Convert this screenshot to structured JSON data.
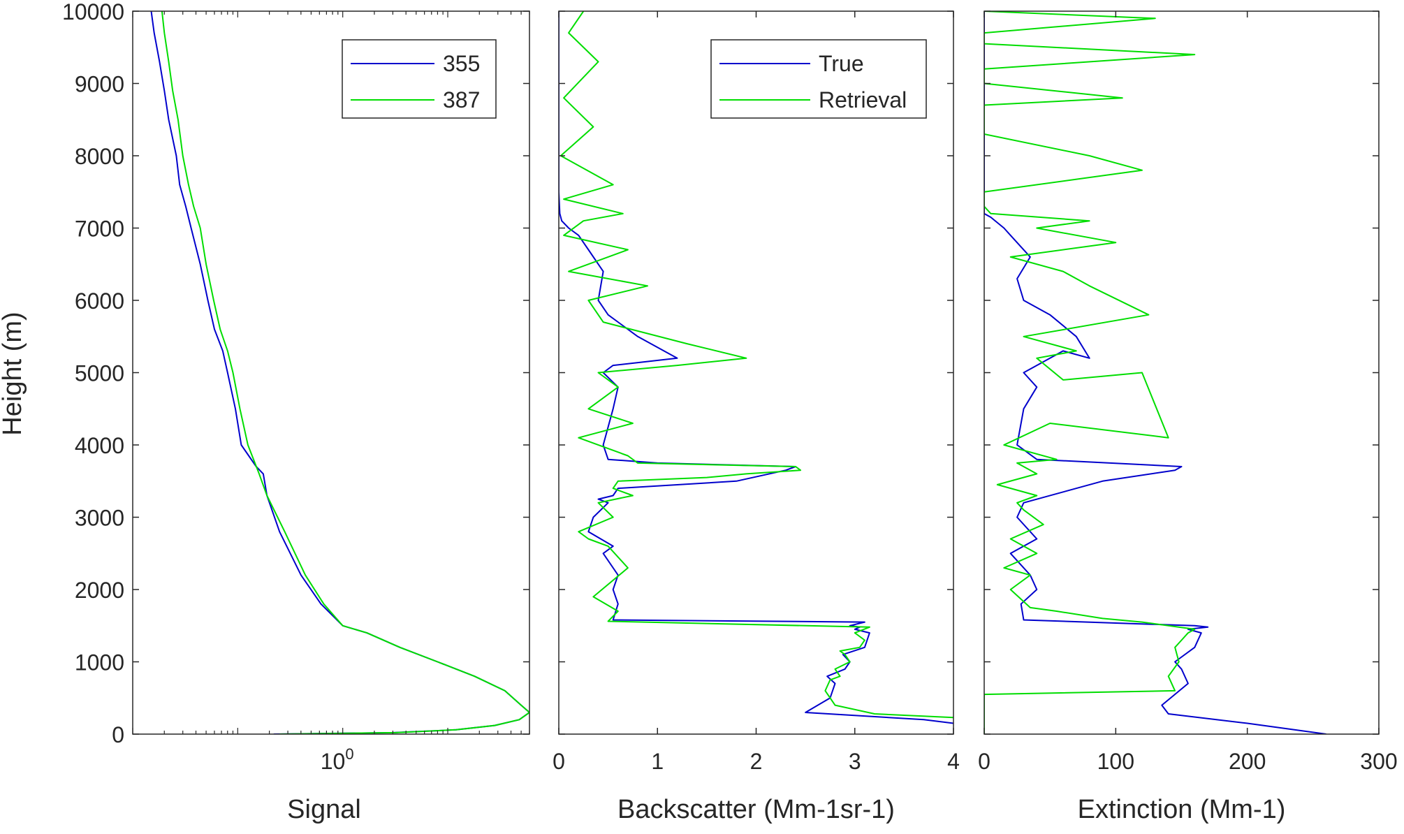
{
  "figure": {
    "ylabel": "Height (m)"
  },
  "chart_data": [
    {
      "id": "signal",
      "type": "line",
      "xscale": "log",
      "xlabel": "Signal",
      "xlim": [
        0.01,
        60
      ],
      "ylim": [
        0,
        10000
      ],
      "xticks": [
        1
      ],
      "xticklabels": [
        "10^0"
      ],
      "yticks": [
        0,
        1000,
        2000,
        3000,
        4000,
        5000,
        6000,
        7000,
        8000,
        9000,
        10000
      ],
      "yticklabels": [
        "0",
        "1000",
        "2000",
        "3000",
        "4000",
        "5000",
        "6000",
        "7000",
        "8000",
        "9000",
        "10000"
      ],
      "grid": false,
      "legend": {
        "position": "top-right",
        "entries": [
          "355",
          "387"
        ]
      },
      "series": [
        {
          "name": "355",
          "color": "#0000cc",
          "x": [
            0.22,
            3.0,
            12.0,
            28.0,
            48.0,
            60.0,
            50.0,
            35.0,
            18.0,
            8.0,
            3.5,
            1.7,
            1.0,
            0.62,
            0.4,
            0.25,
            0.19,
            0.175,
            0.15,
            0.108,
            0.095,
            0.08,
            0.072,
            0.06,
            0.052,
            0.044,
            0.036,
            0.032,
            0.028,
            0.026,
            0.022,
            0.02,
            0.018,
            0.016,
            0.015
          ],
          "y": [
            0,
            20,
            60,
            120,
            200,
            300,
            400,
            600,
            800,
            1000,
            1200,
            1400,
            1500,
            1800,
            2200,
            2800,
            3300,
            3600,
            3700,
            4000,
            4500,
            5000,
            5300,
            5600,
            6000,
            6500,
            7000,
            7300,
            7600,
            8000,
            8500,
            8900,
            9300,
            9700,
            10000
          ]
        },
        {
          "name": "387",
          "color": "#00dd00",
          "x": [
            0.25,
            3.2,
            12.0,
            28.0,
            48.0,
            60.0,
            50.0,
            35.0,
            18.0,
            8.0,
            3.5,
            1.7,
            1.0,
            0.66,
            0.44,
            0.28,
            0.19,
            0.16,
            0.125,
            0.105,
            0.09,
            0.08,
            0.068,
            0.059,
            0.05,
            0.044,
            0.038,
            0.034,
            0.03,
            0.027,
            0.024,
            0.022,
            0.02,
            0.019
          ],
          "y": [
            0,
            20,
            60,
            120,
            200,
            300,
            400,
            600,
            800,
            1000,
            1200,
            1400,
            1500,
            1800,
            2200,
            2800,
            3300,
            3600,
            4000,
            4500,
            5000,
            5300,
            5600,
            6000,
            6500,
            7000,
            7300,
            7600,
            8000,
            8500,
            8900,
            9300,
            9700,
            10000
          ]
        }
      ]
    },
    {
      "id": "backscatter",
      "type": "line",
      "xscale": "linear",
      "xlabel": "Backscatter (Mm-1sr-1)",
      "xlim": [
        0,
        4
      ],
      "ylim": [
        0,
        10000
      ],
      "xticks": [
        0,
        1,
        2,
        3,
        4
      ],
      "xticklabels": [
        "0",
        "1",
        "2",
        "3",
        "4"
      ],
      "grid": false,
      "legend": {
        "position": "top-right",
        "entries": [
          "True",
          "Retrieval"
        ]
      },
      "series": [
        {
          "name": "True",
          "color": "#0000cc",
          "x": [
            4.0,
            3.7,
            2.5,
            2.75,
            2.8,
            2.72,
            2.9,
            2.95,
            2.88,
            3.1,
            3.15,
            3.0,
            3.05,
            2.95,
            3.1,
            0.55,
            0.6,
            0.55,
            0.6,
            0.45,
            0.55,
            0.3,
            0.35,
            0.5,
            0.4,
            0.55,
            0.6,
            1.8,
            2.3,
            2.4,
            1.0,
            0.5,
            0.45,
            0.55,
            0.6,
            0.45,
            0.55,
            1.2,
            0.8,
            0.5,
            0.4,
            0.45,
            0.3,
            0.2,
            0.1,
            0.03,
            0.01,
            0.0,
            0.0,
            0.0,
            0.0
          ],
          "y": [
            150,
            200,
            300,
            500,
            700,
            800,
            900,
            1000,
            1100,
            1200,
            1400,
            1450,
            1480,
            1500,
            1550,
            1580,
            1800,
            2000,
            2200,
            2500,
            2600,
            2800,
            3000,
            3200,
            3250,
            3300,
            3400,
            3500,
            3650,
            3700,
            3750,
            3800,
            4000,
            4500,
            4800,
            5000,
            5100,
            5200,
            5500,
            5800,
            6000,
            6400,
            6700,
            6900,
            7000,
            7100,
            7200,
            7500,
            8000,
            9000,
            10000
          ]
        },
        {
          "name": "Retrieval",
          "color": "#00dd00",
          "x": [
            4.0,
            3.2,
            2.8,
            2.7,
            2.75,
            2.85,
            2.8,
            2.95,
            2.9,
            2.85,
            3.05,
            3.1,
            3.0,
            3.15,
            0.5,
            0.6,
            0.35,
            0.7,
            0.5,
            0.3,
            0.2,
            0.55,
            0.4,
            0.75,
            0.55,
            0.6,
            1.5,
            1.9,
            2.45,
            2.4,
            0.8,
            0.7,
            0.2,
            0.75,
            0.3,
            0.6,
            0.4,
            1.2,
            1.9,
            1.3,
            0.45,
            0.3,
            0.9,
            0.1,
            0.7,
            0.05,
            0.25,
            0.65,
            0.05,
            0.55,
            0.02,
            0.35,
            0.05,
            0.4,
            0.1,
            0.25
          ],
          "y": [
            230,
            280,
            400,
            600,
            750,
            800,
            900,
            1000,
            1100,
            1150,
            1200,
            1300,
            1400,
            1480,
            1560,
            1700,
            1900,
            2300,
            2600,
            2700,
            2800,
            3000,
            3200,
            3300,
            3400,
            3500,
            3550,
            3600,
            3650,
            3700,
            3750,
            3850,
            4100,
            4300,
            4500,
            4800,
            5000,
            5100,
            5200,
            5400,
            5700,
            6000,
            6200,
            6400,
            6700,
            6900,
            7100,
            7200,
            7400,
            7600,
            8000,
            8400,
            8800,
            9300,
            9700,
            10000
          ]
        }
      ]
    },
    {
      "id": "extinction",
      "type": "line",
      "xscale": "linear",
      "xlabel": "Extinction (Mm-1)",
      "xlim": [
        0,
        300
      ],
      "ylim": [
        0,
        10000
      ],
      "xticks": [
        0,
        100,
        200,
        300
      ],
      "xticklabels": [
        "0",
        "100",
        "200",
        "300"
      ],
      "grid": false,
      "legend": null,
      "series": [
        {
          "name": "True",
          "color": "#0000cc",
          "x": [
            260,
            200,
            140,
            135,
            155,
            150,
            145,
            160,
            165,
            155,
            170,
            160,
            30,
            28,
            40,
            35,
            20,
            40,
            25,
            30,
            90,
            145,
            150,
            40,
            25,
            30,
            40,
            30,
            60,
            80,
            70,
            50,
            30,
            25,
            35,
            20,
            15,
            5,
            0,
            0,
            0,
            0
          ],
          "y": [
            0,
            150,
            280,
            400,
            700,
            900,
            1000,
            1200,
            1400,
            1450,
            1480,
            1500,
            1580,
            1800,
            2000,
            2200,
            2500,
            2700,
            3000,
            3200,
            3500,
            3650,
            3700,
            3800,
            4000,
            4500,
            4800,
            5000,
            5300,
            5200,
            5500,
            5800,
            6000,
            6300,
            6600,
            6900,
            7000,
            7150,
            7200,
            8000,
            9000,
            10000
          ]
        },
        {
          "name": "Retrieval",
          "color": "#00dd00",
          "x": [
            0,
            0,
            145,
            140,
            148,
            145,
            150,
            155,
            160,
            120,
            90,
            55,
            35,
            20,
            35,
            15,
            40,
            20,
            45,
            30,
            25,
            40,
            10,
            40,
            25,
            55,
            15,
            50,
            140,
            120,
            60,
            40,
            70,
            30,
            125,
            80,
            60,
            20,
            100,
            40,
            80,
            5,
            0,
            0,
            120,
            80,
            0,
            0,
            0,
            105,
            0,
            0,
            160,
            0,
            0,
            130,
            0
          ],
          "y": [
            0,
            550,
            600,
            800,
            1000,
            1200,
            1300,
            1400,
            1450,
            1550,
            1600,
            1700,
            1750,
            2000,
            2200,
            2300,
            2500,
            2700,
            2900,
            3100,
            3200,
            3300,
            3450,
            3600,
            3750,
            3800,
            4000,
            4300,
            4100,
            5000,
            4900,
            5200,
            5300,
            5500,
            5800,
            6200,
            6400,
            6600,
            6800,
            7000,
            7100,
            7200,
            7300,
            7500,
            7800,
            8000,
            8300,
            8500,
            8700,
            8800,
            9000,
            9200,
            9400,
            9550,
            9700,
            9900,
            10000
          ]
        }
      ]
    }
  ]
}
